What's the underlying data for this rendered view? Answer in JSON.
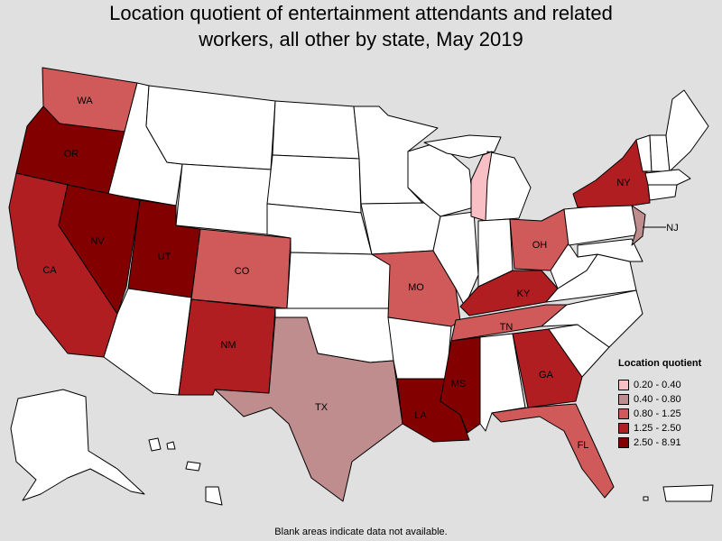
{
  "title": {
    "line1": "Location quotient of entertainment attendants and related",
    "line2": "workers, all other by state, May 2019"
  },
  "legend": {
    "title": "Location quotient",
    "items": [
      {
        "range": "0.20 - 0.40",
        "color": "#f8c0c4"
      },
      {
        "range": "0.40 - 0.80",
        "color": "#bf8d8d"
      },
      {
        "range": "0.80 - 1.25",
        "color": "#d05a5a"
      },
      {
        "range": "1.25 - 2.50",
        "color": "#b01e22"
      },
      {
        "range": "2.50 - 8.91",
        "color": "#820000"
      }
    ]
  },
  "footnote": "Blank areas indicate data not available.",
  "colors": {
    "background": "#e0e0e0",
    "no_data": "#ffffff"
  },
  "states": [
    {
      "abbr": "WA",
      "label": "WA",
      "range": "0.80 - 1.25"
    },
    {
      "abbr": "OR",
      "label": "OR",
      "range": "2.50 - 8.91"
    },
    {
      "abbr": "CA",
      "label": "CA",
      "range": "1.25 - 2.50"
    },
    {
      "abbr": "NV",
      "label": "NV",
      "range": "2.50 - 8.91"
    },
    {
      "abbr": "UT",
      "label": "UT",
      "range": "2.50 - 8.91"
    },
    {
      "abbr": "CO",
      "label": "CO",
      "range": "0.80 - 1.25"
    },
    {
      "abbr": "NM",
      "label": "NM",
      "range": "1.25 - 2.50"
    },
    {
      "abbr": "TX",
      "label": "TX",
      "range": "0.40 - 0.80"
    },
    {
      "abbr": "MO",
      "label": "MO",
      "range": "0.80 - 1.25"
    },
    {
      "abbr": "LA",
      "label": "LA",
      "range": "2.50 - 8.91"
    },
    {
      "abbr": "MS",
      "label": "MS",
      "range": "2.50 - 8.91"
    },
    {
      "abbr": "TN",
      "label": "TN",
      "range": "0.80 - 1.25"
    },
    {
      "abbr": "KY",
      "label": "KY",
      "range": "1.25 - 2.50"
    },
    {
      "abbr": "GA",
      "label": "GA",
      "range": "1.25 - 2.50"
    },
    {
      "abbr": "FL",
      "label": "FL",
      "range": "0.80 - 1.25"
    },
    {
      "abbr": "OH",
      "label": "OH",
      "range": "0.80 - 1.25"
    },
    {
      "abbr": "NY",
      "label": "NY",
      "range": "1.25 - 2.50"
    },
    {
      "abbr": "NJ",
      "label": "NJ",
      "range": "0.40 - 0.80"
    },
    {
      "abbr": "MI-LOWER",
      "label": "",
      "range": "0.20 - 0.40"
    }
  ]
}
